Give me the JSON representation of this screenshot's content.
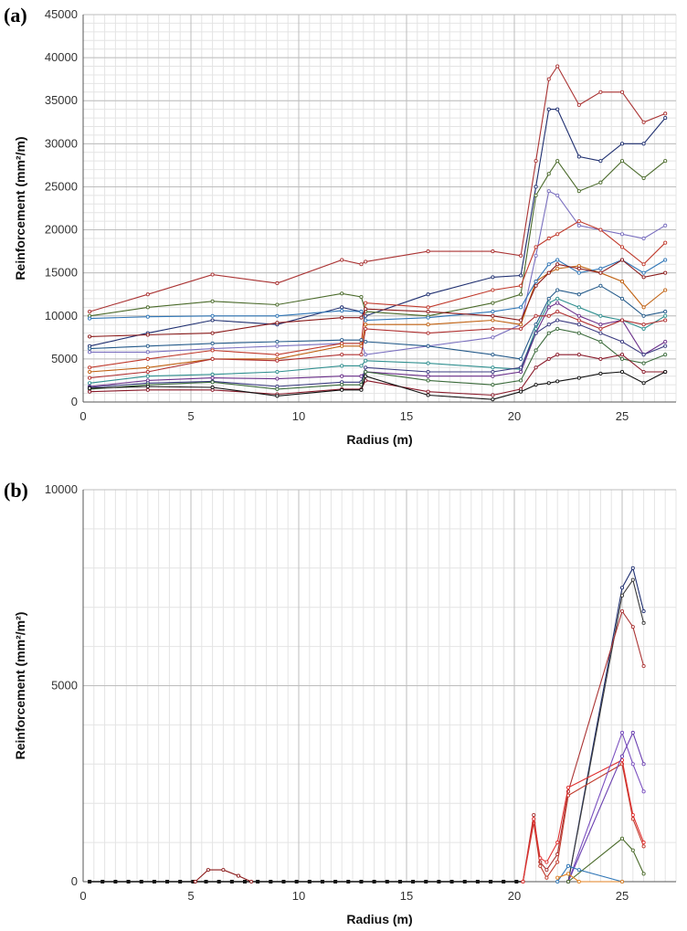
{
  "chart_data": [
    {
      "panel_label": "(a)",
      "type": "line",
      "xlabel": "Radius (m)",
      "ylabel": "Reinforcement (mm²/m)",
      "xlim": [
        0,
        27.5
      ],
      "ylim": [
        0,
        45000
      ],
      "xticks": [
        "0",
        "5",
        "10",
        "15",
        "20",
        "25"
      ],
      "yticks": [
        "0",
        "5000",
        "10000",
        "15000",
        "20000",
        "25000",
        "30000",
        "35000",
        "40000",
        "45000"
      ],
      "grid": true,
      "x": [
        0.3,
        3,
        6,
        9,
        12,
        12.9,
        13.1,
        16,
        19,
        20.3,
        21,
        21.6,
        22,
        23,
        24,
        25,
        26,
        27
      ],
      "series": [
        {
          "color": "#a33",
          "values": [
            10500,
            12500,
            14800,
            13800,
            16500,
            16000,
            16300,
            17500,
            17500,
            17000,
            28000,
            37500,
            39000,
            34500,
            36000,
            36000,
            32500,
            33500
          ]
        },
        {
          "color": "#1f2f70",
          "values": [
            6500,
            8000,
            9500,
            9000,
            11000,
            10500,
            10000,
            12500,
            14500,
            14700,
            25000,
            34000,
            34000,
            28500,
            28000,
            30000,
            30000,
            33000
          ]
        },
        {
          "color": "#4a6a2a",
          "values": [
            10000,
            11000,
            11700,
            11300,
            12600,
            12200,
            10500,
            10000,
            11500,
            12500,
            24000,
            26500,
            28000,
            24500,
            25500,
            28000,
            26000,
            28000
          ]
        },
        {
          "color": "#7a6fbf",
          "values": [
            5800,
            5800,
            6200,
            6500,
            6800,
            6800,
            5500,
            6500,
            7500,
            9000,
            17000,
            24500,
            24000,
            20500,
            20000,
            19500,
            19000,
            20500
          ]
        },
        {
          "color": "#c0392b",
          "values": [
            4000,
            5000,
            6000,
            5500,
            6800,
            6800,
            11500,
            11000,
            13000,
            13500,
            18000,
            19000,
            19500,
            21000,
            20000,
            18000,
            16000,
            18500
          ]
        },
        {
          "color": "#c06010",
          "values": [
            3500,
            4000,
            5000,
            5000,
            6500,
            6500,
            9000,
            9000,
            9500,
            9000,
            14000,
            15000,
            15500,
            15800,
            15000,
            14000,
            11000,
            13000
          ]
        },
        {
          "color": "#2e75b6",
          "values": [
            9700,
            9900,
            10000,
            10000,
            10600,
            10500,
            9500,
            9800,
            10500,
            11000,
            14000,
            16000,
            16500,
            15000,
            15500,
            16500,
            15000,
            16500
          ]
        },
        {
          "color": "#8b1a1a",
          "values": [
            7600,
            7800,
            8000,
            9200,
            9800,
            9800,
            10800,
            10500,
            10000,
            9500,
            13500,
            15000,
            16000,
            15500,
            15000,
            16500,
            14500,
            15000
          ]
        },
        {
          "color": "#245a8a",
          "values": [
            6200,
            6500,
            6800,
            7000,
            7200,
            7200,
            7000,
            6500,
            5500,
            5000,
            9000,
            12000,
            13000,
            12500,
            13500,
            12000,
            10000,
            10500
          ]
        },
        {
          "color": "#2f8f8f",
          "values": [
            2200,
            3000,
            3200,
            3500,
            4200,
            4200,
            4800,
            4500,
            4000,
            3800,
            8500,
            11500,
            12000,
            11000,
            10000,
            9500,
            8500,
            10000
          ]
        },
        {
          "color": "#6a2f8a",
          "values": [
            1800,
            2500,
            2800,
            2700,
            3000,
            3000,
            3500,
            3000,
            3000,
            3500,
            8000,
            11000,
            11500,
            10000,
            9000,
            9500,
            5500,
            7000
          ]
        },
        {
          "color": "#b03030",
          "values": [
            2800,
            3500,
            5000,
            4800,
            5500,
            5500,
            8500,
            8000,
            8500,
            8500,
            10000,
            10000,
            10500,
            9500,
            8500,
            9500,
            9000,
            9500
          ]
        },
        {
          "color": "#3a3a80",
          "values": [
            1700,
            2200,
            2400,
            1800,
            2300,
            2300,
            4000,
            3500,
            3500,
            4000,
            8000,
            9000,
            9500,
            9000,
            8000,
            7000,
            5500,
            6500
          ]
        },
        {
          "color": "#3a6a3a",
          "values": [
            1500,
            2000,
            2300,
            1500,
            2000,
            2000,
            3500,
            2500,
            2000,
            2500,
            6000,
            8000,
            8500,
            8000,
            7000,
            5000,
            4500,
            5500
          ]
        },
        {
          "color": "#8a1a2a",
          "values": [
            1200,
            1400,
            1400,
            900,
            1500,
            1500,
            2500,
            1200,
            800,
            1500,
            4000,
            5000,
            5500,
            5500,
            5000,
            5500,
            3500,
            3500
          ]
        },
        {
          "color": "#111111",
          "values": [
            1600,
            1800,
            1700,
            700,
            1400,
            1400,
            3000,
            800,
            300,
            1200,
            2000,
            2200,
            2400,
            2800,
            3300,
            3500,
            2200,
            3500
          ]
        }
      ]
    },
    {
      "panel_label": "(b)",
      "type": "line",
      "xlabel": "Radius (m)",
      "ylabel": "Reinforcement (mm²/m²)",
      "xlim": [
        0,
        27.5
      ],
      "ylim": [
        0,
        10000
      ],
      "xticks": [
        "0",
        "5",
        "10",
        "15",
        "20",
        "25"
      ],
      "yticks": [
        "0",
        "5000",
        "10000"
      ],
      "grid": true,
      "baseline_x": [
        0.3,
        20.4
      ],
      "baseline_marker_step": 0.6,
      "series": [
        {
          "color": "#8b1a1a",
          "points": [
            [
              5.2,
              0
            ],
            [
              5.8,
              300
            ],
            [
              6.5,
              300
            ],
            [
              7.2,
              150
            ],
            [
              7.8,
              0
            ]
          ]
        },
        {
          "color": "#1f2f70",
          "points": [
            [
              22.5,
              0
            ],
            [
              25,
              7500
            ],
            [
              25.5,
              8000
            ],
            [
              26,
              6900
            ]
          ]
        },
        {
          "color": "#3a3a3a",
          "points": [
            [
              22.5,
              0
            ],
            [
              25,
              7300
            ],
            [
              25.5,
              7700
            ],
            [
              26,
              6600
            ]
          ]
        },
        {
          "color": "#a33",
          "points": [
            [
              20.4,
              0
            ],
            [
              20.9,
              1700
            ],
            [
              21.2,
              500
            ],
            [
              21.5,
              300
            ],
            [
              22,
              700
            ],
            [
              22.5,
              2300
            ],
            [
              25,
              6900
            ],
            [
              25.5,
              6500
            ],
            [
              26,
              5500
            ]
          ]
        },
        {
          "color": "#c0392b",
          "points": [
            [
              20.4,
              0
            ],
            [
              20.9,
              1500
            ],
            [
              21.2,
              400
            ],
            [
              21.5,
              100
            ],
            [
              22,
              500
            ],
            [
              22.5,
              2200
            ],
            [
              25,
              3000
            ],
            [
              25.5,
              1600
            ],
            [
              26,
              900
            ]
          ]
        },
        {
          "color": "#e03030",
          "points": [
            [
              20.4,
              0
            ],
            [
              20.9,
              1600
            ],
            [
              21.2,
              600
            ],
            [
              21.5,
              500
            ],
            [
              22,
              1000
            ],
            [
              22.5,
              2400
            ],
            [
              25,
              3100
            ],
            [
              25.5,
              1700
            ],
            [
              26,
              1000
            ]
          ]
        },
        {
          "color": "#7a4fbf",
          "points": [
            [
              22.5,
              0
            ],
            [
              25,
              3800
            ],
            [
              25.5,
              3000
            ],
            [
              26,
              2300
            ]
          ]
        },
        {
          "color": "#6a3fb0",
          "points": [
            [
              22.5,
              0
            ],
            [
              25,
              3200
            ],
            [
              25.5,
              3800
            ],
            [
              26,
              3000
            ]
          ]
        },
        {
          "color": "#4a6a2a",
          "points": [
            [
              22.5,
              0
            ],
            [
              25,
              1100
            ],
            [
              25.5,
              800
            ],
            [
              26,
              200
            ]
          ]
        },
        {
          "color": "#2e75b6",
          "points": [
            [
              22,
              0
            ],
            [
              22.5,
              400
            ],
            [
              23,
              300
            ],
            [
              25,
              0
            ]
          ]
        },
        {
          "color": "#e08020",
          "points": [
            [
              22,
              100
            ],
            [
              22.5,
              200
            ],
            [
              23,
              0
            ],
            [
              25,
              0
            ]
          ]
        }
      ]
    }
  ]
}
